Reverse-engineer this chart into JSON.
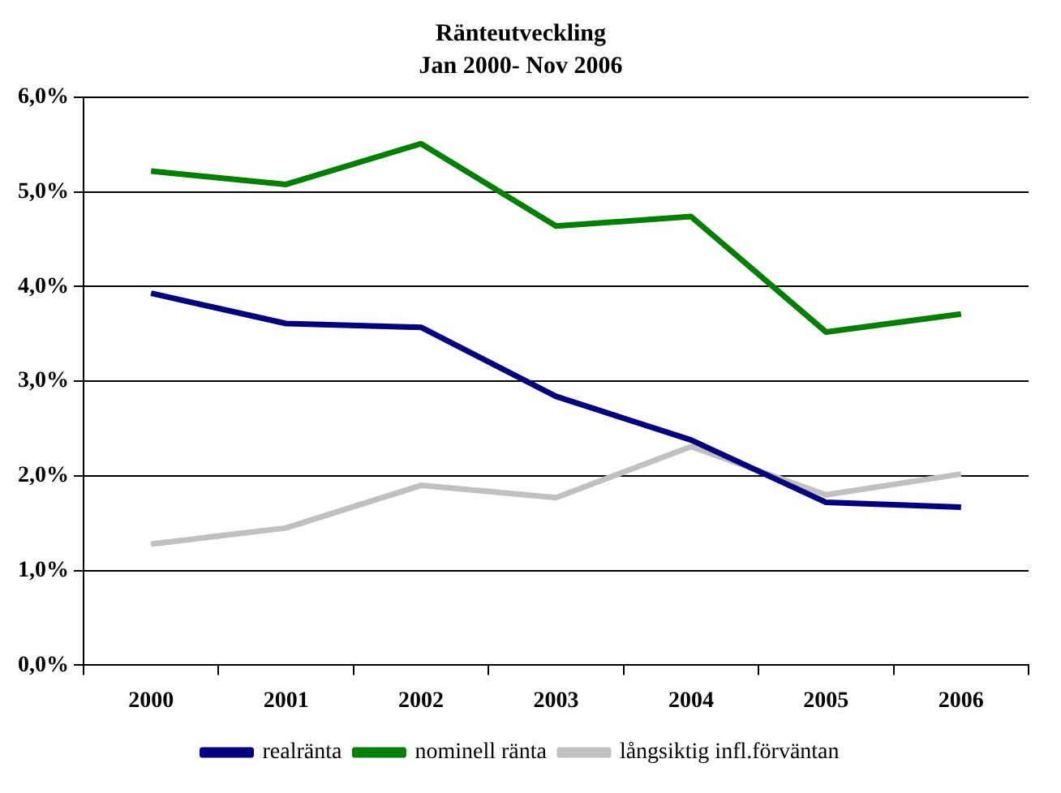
{
  "chart_data": {
    "type": "line",
    "title": "Ränteutveckling",
    "subtitle": "Jan 2000- Nov 2006",
    "categories": [
      "2000",
      "2001",
      "2002",
      "2003",
      "2004",
      "2005",
      "2006"
    ],
    "series": [
      {
        "name": "realränta",
        "color": "#000080",
        "values": [
          3.93,
          3.61,
          3.57,
          2.84,
          2.38,
          1.72,
          1.67
        ]
      },
      {
        "name": "nominell ränta",
        "color": "#008000",
        "values": [
          5.22,
          5.08,
          5.51,
          4.64,
          4.74,
          3.52,
          3.71
        ]
      },
      {
        "name": "långsiktig infl.förväntan",
        "color": "#c0c0c0",
        "values": [
          1.28,
          1.45,
          1.9,
          1.77,
          2.31,
          1.8,
          2.02
        ]
      }
    ],
    "ylim": [
      0,
      6
    ],
    "yticks": [
      {
        "value": 0,
        "label": "0,0%"
      },
      {
        "value": 1,
        "label": "1,0%"
      },
      {
        "value": 2,
        "label": "2,0%"
      },
      {
        "value": 3,
        "label": "3,0%"
      },
      {
        "value": 4,
        "label": "4,0%"
      },
      {
        "value": 5,
        "label": "5,0%"
      },
      {
        "value": 6,
        "label": "6,0%"
      }
    ],
    "grid": "y",
    "legend": "bottom",
    "marker": "none",
    "line_style": "solid"
  }
}
